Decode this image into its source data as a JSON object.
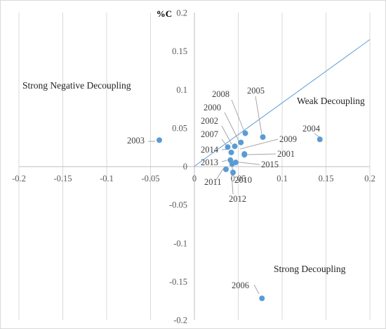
{
  "chart_data": {
    "type": "scatter",
    "xlim": [
      -0.2,
      0.2
    ],
    "ylim": [
      -0.2,
      0.2
    ],
    "x_ticks": [
      "-0.2",
      "-0.15",
      "-0.1",
      "-0.05",
      "0",
      "0.05",
      "0.1",
      "0.15",
      "0.2"
    ],
    "y_ticks": [
      "0.2",
      "0.15",
      "0.1",
      "0.05",
      "0",
      "-0.05",
      "-0.1",
      "-0.15",
      "-0.2"
    ],
    "ylabel": "%C",
    "grid": "vertical",
    "marker_color": "#5b9bd5",
    "line_color": "#5b9bd5",
    "reference_line": {
      "x": [
        0,
        0.2
      ],
      "y": [
        0,
        0.165
      ]
    },
    "annotations": [
      "Strong Negative Decoupling",
      "Weak Decoupling",
      "Strong Decoupling"
    ],
    "points": [
      {
        "label": "2003",
        "x": -0.04,
        "y": 0.034
      },
      {
        "label": "2004",
        "x": 0.143,
        "y": 0.035
      },
      {
        "label": "2005",
        "x": 0.078,
        "y": 0.038
      },
      {
        "label": "2008",
        "x": 0.058,
        "y": 0.043
      },
      {
        "label": "2000",
        "x": 0.053,
        "y": 0.031
      },
      {
        "label": "2002",
        "x": 0.046,
        "y": 0.026
      },
      {
        "label": "2007",
        "x": 0.038,
        "y": 0.025
      },
      {
        "label": "2014",
        "x": 0.042,
        "y": 0.018
      },
      {
        "label": "2009",
        "x": 0.057,
        "y": 0.016
      },
      {
        "label": "2001",
        "x": 0.057,
        "y": 0.015
      },
      {
        "label": "2013",
        "x": 0.041,
        "y": 0.008
      },
      {
        "label": "2015",
        "x": 0.047,
        "y": 0.005
      },
      {
        "label": "2010",
        "x": 0.043,
        "y": 0.003
      },
      {
        "label": "2011",
        "x": 0.036,
        "y": -0.004
      },
      {
        "label": "2012",
        "x": 0.044,
        "y": -0.008
      },
      {
        "label": "2006",
        "x": 0.077,
        "y": -0.172
      }
    ]
  }
}
